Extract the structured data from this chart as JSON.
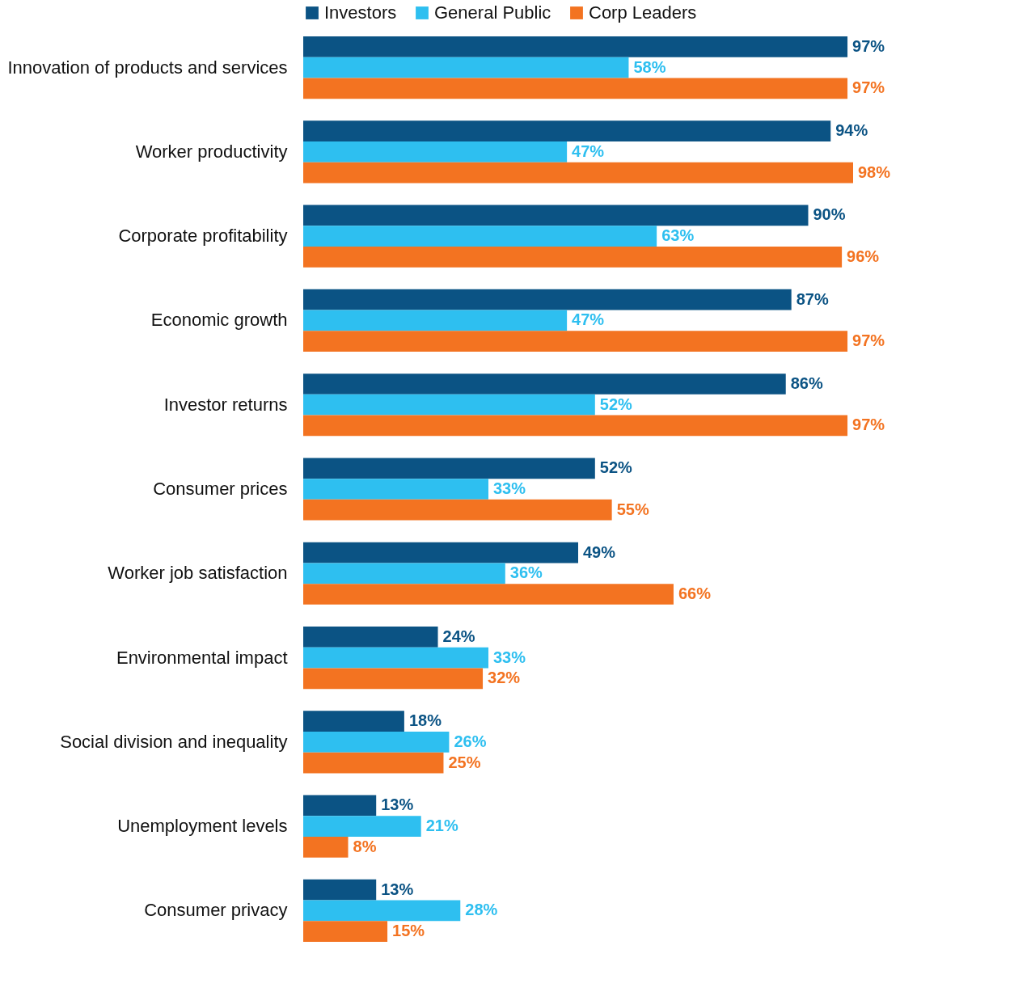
{
  "chart_data": {
    "type": "bar",
    "orientation": "horizontal",
    "legend": "top",
    "categories": [
      "Innovation of products and services",
      "Worker productivity",
      "Corporate profitability",
      "Economic growth",
      "Investor returns",
      "Consumer prices",
      "Worker job satisfaction",
      "Environmental impact",
      "Social division and inequality",
      "Unemployment levels",
      "Consumer privacy"
    ],
    "series": [
      {
        "name": "Investors",
        "color": "#0b5384",
        "values": [
          97,
          94,
          90,
          87,
          86,
          52,
          49,
          24,
          18,
          13,
          13
        ],
        "value_labels": [
          "97%",
          "94%",
          "90%",
          "87%",
          "86%",
          "52%",
          "49%",
          "24%",
          "18%",
          "13%",
          "13%"
        ]
      },
      {
        "name": "General Public",
        "color": "#2ebff0",
        "values": [
          58,
          47,
          63,
          47,
          52,
          33,
          36,
          33,
          26,
          21,
          28
        ],
        "value_labels": [
          "58%",
          "47%",
          "63%",
          "47%",
          "52%",
          "33%",
          "36%",
          "33%",
          "26%",
          "21%",
          "28%"
        ]
      },
      {
        "name": "Corp Leaders",
        "color": "#f37321",
        "values": [
          97,
          98,
          96,
          97,
          97,
          55,
          66,
          32,
          25,
          8,
          15
        ],
        "value_labels": [
          "97%",
          "98%",
          "96%",
          "97%",
          "97%",
          "55%",
          "66%",
          "32%",
          "25%",
          "8%",
          "15%"
        ]
      }
    ]
  }
}
